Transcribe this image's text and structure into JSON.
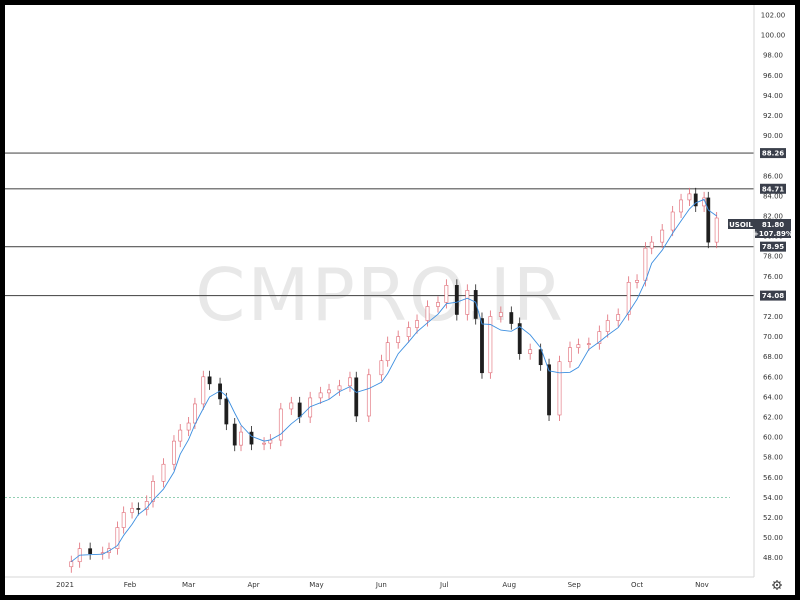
{
  "watermark": "CMPRO.IR",
  "symbol": "USOIL",
  "last_price": "81.80",
  "change_pct": "+107.89%",
  "settings_icon": "gear-icon",
  "colors": {
    "up": "#ffffff",
    "down": "#1e1e1e",
    "wick_up": "#e06a75",
    "wick_down": "#1e1e1e",
    "ma": "#3d8fe0",
    "level": "#555555",
    "dotted": "#6fbf9a",
    "label_bg": "#3a3f4b",
    "label_fg": "#ffffff"
  },
  "chart_data": {
    "type": "candlestick",
    "ylim": [
      47,
      103
    ],
    "y_ticks": [
      "102.00",
      "100.00",
      "98.00",
      "96.00",
      "94.00",
      "92.00",
      "90.00",
      "88.00",
      "86.00",
      "84.00",
      "82.00",
      "80.00",
      "78.00",
      "76.00",
      "74.00",
      "72.00",
      "70.00",
      "68.00",
      "66.00",
      "64.00",
      "62.00",
      "60.00",
      "58.00",
      "56.00",
      "54.00",
      "52.00",
      "50.00",
      "48.00"
    ],
    "x_ticks": [
      "2021",
      "Feb",
      "Mar",
      "Apr",
      "May",
      "Jun",
      "Jul",
      "Aug",
      "Sep",
      "Oct",
      "Nov"
    ],
    "horizontal_levels": [
      {
        "label": "88.26",
        "value": 88.26
      },
      {
        "label": "84.71",
        "value": 84.71
      },
      {
        "label": "78.95",
        "value": 78.95
      },
      {
        "label": "74.08",
        "value": 74.08
      }
    ],
    "dotted_level": 54.0,
    "close_series": [
      {
        "date": "2021-01-04",
        "close": 47.6
      },
      {
        "date": "2021-01-08",
        "close": 48.9
      },
      {
        "date": "2021-01-13",
        "close": 48.4
      },
      {
        "date": "2021-01-19",
        "close": 48.5
      },
      {
        "date": "2021-01-22",
        "close": 48.9
      },
      {
        "date": "2021-01-26",
        "close": 51.0
      },
      {
        "date": "2021-01-29",
        "close": 52.5
      },
      {
        "date": "2021-02-02",
        "close": 52.9
      },
      {
        "date": "2021-02-05",
        "close": 52.8
      },
      {
        "date": "2021-02-09",
        "close": 53.6
      },
      {
        "date": "2021-02-12",
        "close": 55.6
      },
      {
        "date": "2021-02-17",
        "close": 57.3
      },
      {
        "date": "2021-02-22",
        "close": 59.6
      },
      {
        "date": "2021-02-25",
        "close": 60.7
      },
      {
        "date": "2021-03-01",
        "close": 61.4
      },
      {
        "date": "2021-03-04",
        "close": 63.3
      },
      {
        "date": "2021-03-08",
        "close": 66.0
      },
      {
        "date": "2021-03-11",
        "close": 65.3
      },
      {
        "date": "2021-03-16",
        "close": 63.8
      },
      {
        "date": "2021-03-19",
        "close": 61.3
      },
      {
        "date": "2021-03-23",
        "close": 59.2
      },
      {
        "date": "2021-03-26",
        "close": 60.5
      },
      {
        "date": "2021-03-31",
        "close": 59.3
      },
      {
        "date": "2021-04-06",
        "close": 59.4
      },
      {
        "date": "2021-04-09",
        "close": 59.7
      },
      {
        "date": "2021-04-14",
        "close": 62.8
      },
      {
        "date": "2021-04-19",
        "close": 63.4
      },
      {
        "date": "2021-04-23",
        "close": 62.0
      },
      {
        "date": "2021-04-28",
        "close": 63.9
      },
      {
        "date": "2021-05-03",
        "close": 64.4
      },
      {
        "date": "2021-05-07",
        "close": 64.7
      },
      {
        "date": "2021-05-12",
        "close": 65.1
      },
      {
        "date": "2021-05-17",
        "close": 65.9
      },
      {
        "date": "2021-05-20",
        "close": 62.1
      },
      {
        "date": "2021-05-26",
        "close": 66.2
      },
      {
        "date": "2021-06-01",
        "close": 67.6
      },
      {
        "date": "2021-06-04",
        "close": 69.4
      },
      {
        "date": "2021-06-09",
        "close": 70.0
      },
      {
        "date": "2021-06-14",
        "close": 70.9
      },
      {
        "date": "2021-06-18",
        "close": 71.6
      },
      {
        "date": "2021-06-23",
        "close": 73.0
      },
      {
        "date": "2021-06-28",
        "close": 73.4
      },
      {
        "date": "2021-07-02",
        "close": 75.1
      },
      {
        "date": "2021-07-07",
        "close": 72.2
      },
      {
        "date": "2021-07-12",
        "close": 74.6
      },
      {
        "date": "2021-07-16",
        "close": 71.8
      },
      {
        "date": "2021-07-19",
        "close": 66.4
      },
      {
        "date": "2021-07-23",
        "close": 72.0
      },
      {
        "date": "2021-07-28",
        "close": 72.4
      },
      {
        "date": "2021-08-02",
        "close": 71.3
      },
      {
        "date": "2021-08-06",
        "close": 68.3
      },
      {
        "date": "2021-08-11",
        "close": 68.7
      },
      {
        "date": "2021-08-16",
        "close": 67.2
      },
      {
        "date": "2021-08-20",
        "close": 62.2
      },
      {
        "date": "2021-08-25",
        "close": 67.5
      },
      {
        "date": "2021-08-30",
        "close": 68.9
      },
      {
        "date": "2021-09-03",
        "close": 69.2
      },
      {
        "date": "2021-09-08",
        "close": 69.3
      },
      {
        "date": "2021-09-13",
        "close": 70.5
      },
      {
        "date": "2021-09-17",
        "close": 71.6
      },
      {
        "date": "2021-09-22",
        "close": 72.2
      },
      {
        "date": "2021-09-27",
        "close": 75.4
      },
      {
        "date": "2021-10-01",
        "close": 75.6
      },
      {
        "date": "2021-10-05",
        "close": 78.8
      },
      {
        "date": "2021-10-08",
        "close": 79.4
      },
      {
        "date": "2021-10-13",
        "close": 80.6
      },
      {
        "date": "2021-10-18",
        "close": 82.4
      },
      {
        "date": "2021-10-22",
        "close": 83.6
      },
      {
        "date": "2021-10-26",
        "close": 84.2
      },
      {
        "date": "2021-10-29",
        "close": 83.0
      },
      {
        "date": "2021-11-02",
        "close": 83.8
      },
      {
        "date": "2021-11-04",
        "close": 79.4
      },
      {
        "date": "2021-11-08",
        "close": 81.8
      }
    ]
  }
}
